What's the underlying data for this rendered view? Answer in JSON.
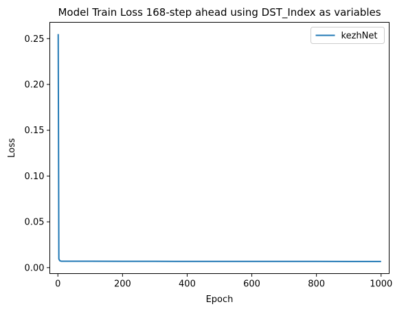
{
  "chart_data": {
    "type": "line",
    "title": "Model Train Loss 168-step ahead using DST_Index as variables",
    "xlabel": "Epoch",
    "ylabel": "Loss",
    "xlim": [
      -25,
      1025
    ],
    "ylim": [
      -0.0065,
      0.2678
    ],
    "x_ticks": [
      0,
      200,
      400,
      600,
      800,
      1000
    ],
    "y_ticks": [
      0.0,
      0.05,
      0.1,
      0.15,
      0.2,
      0.25
    ],
    "x_tick_labels": [
      "0",
      "200",
      "400",
      "600",
      "800",
      "1000"
    ],
    "y_tick_labels": [
      "0.00",
      "0.05",
      "0.10",
      "0.15",
      "0.20",
      "0.25"
    ],
    "grid": false,
    "legend_position": "upper right",
    "series": [
      {
        "name": "kezhNet",
        "color": "#1f77b4",
        "x": [
          1,
          3,
          6,
          10,
          20,
          50,
          100,
          200,
          300,
          400,
          500,
          600,
          700,
          800,
          900,
          1000
        ],
        "values": [
          0.255,
          0.0095,
          0.0075,
          0.007,
          0.007,
          0.007,
          0.007,
          0.0069,
          0.0069,
          0.0068,
          0.0068,
          0.0068,
          0.0068,
          0.0068,
          0.0067,
          0.0067
        ]
      }
    ]
  }
}
